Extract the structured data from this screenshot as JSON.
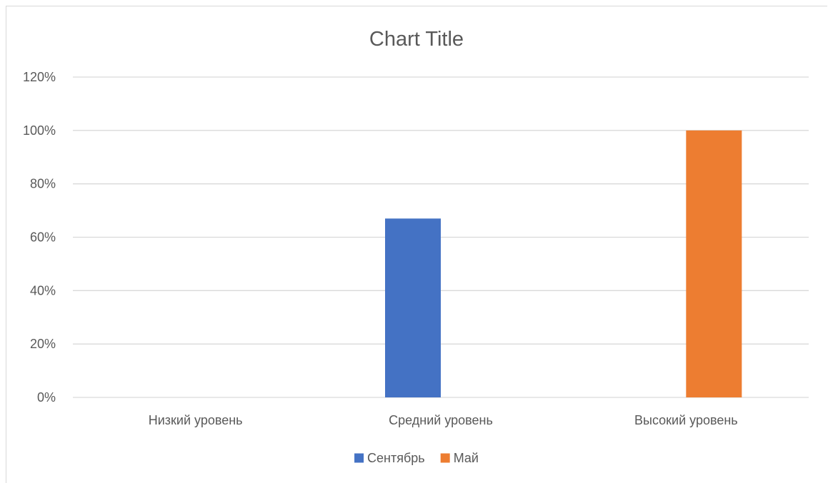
{
  "chart_data": {
    "type": "bar",
    "title": "Chart Title",
    "xlabel": "",
    "ylabel": "",
    "categories": [
      "Низкий уровень",
      "Средний уровень",
      "Высокий уровень"
    ],
    "series": [
      {
        "name": "Сентябрь",
        "color": "#4472c4",
        "values": [
          0,
          0.67,
          0
        ]
      },
      {
        "name": "Май",
        "color": "#ed7d31",
        "values": [
          0,
          0,
          1.0
        ]
      }
    ],
    "ylim": [
      0,
      1.2
    ],
    "yticks": [
      0,
      0.2,
      0.4,
      0.6,
      0.8,
      1.0,
      1.2
    ],
    "ytick_labels": [
      "0%",
      "20%",
      "40%",
      "60%",
      "80%",
      "100%",
      "120%"
    ],
    "grid": true,
    "legend_position": "bottom"
  }
}
